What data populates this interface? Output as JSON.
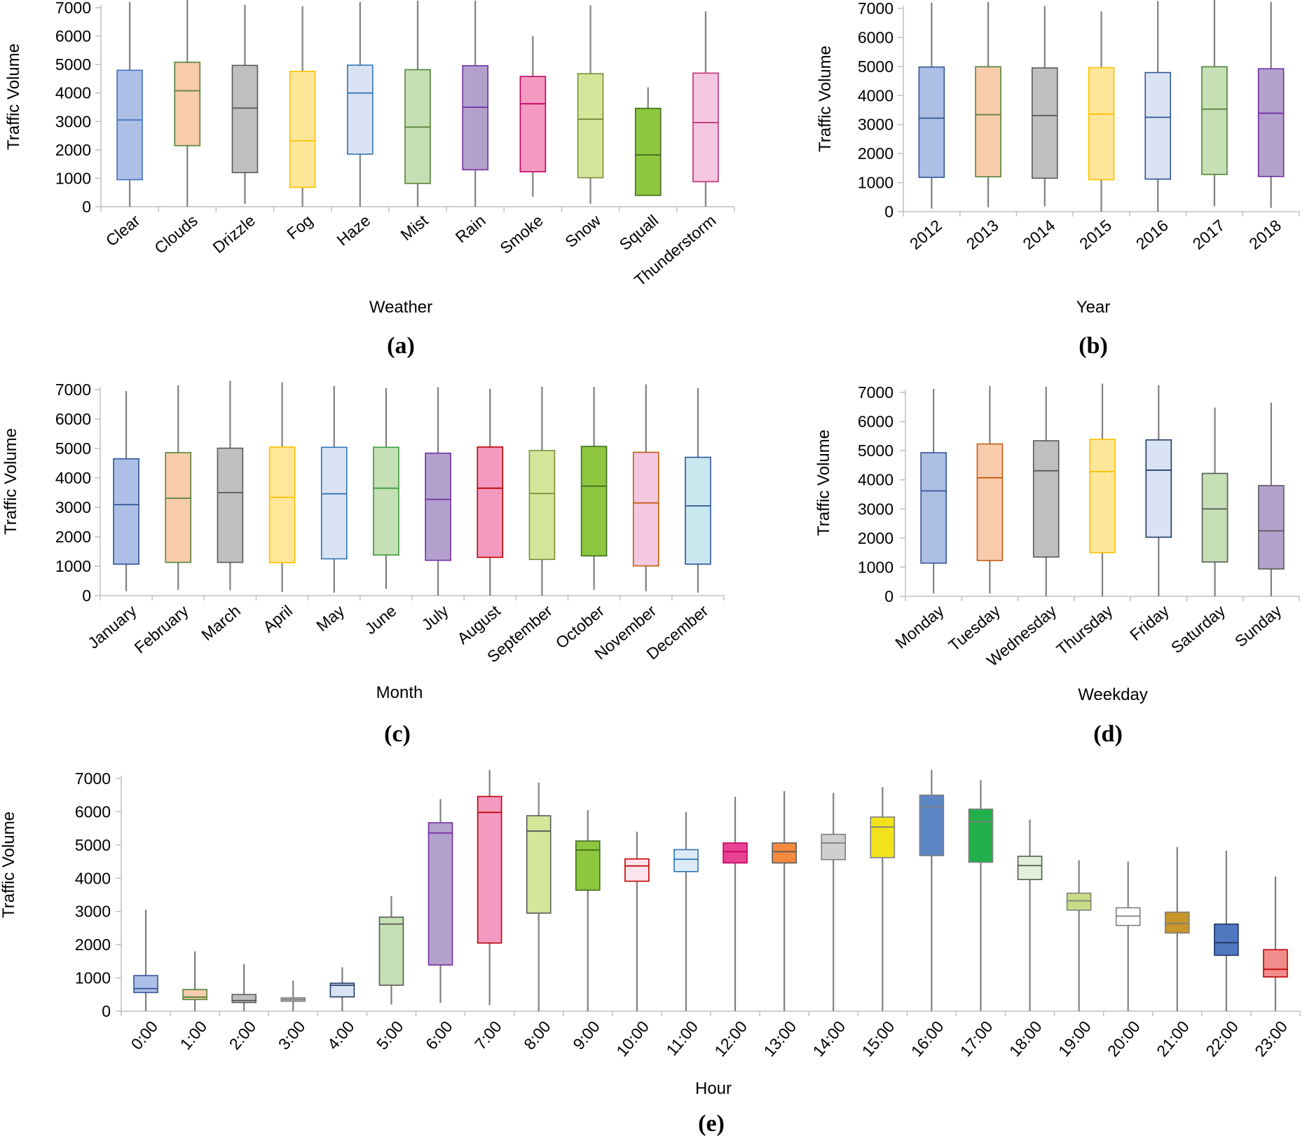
{
  "figure": {
    "colors": [
      "#4472c4",
      "#ed7d31",
      "#808080",
      "#ffc000",
      "#5b9bd5",
      "#70ad47",
      "#7030a0",
      "#e6007e",
      "#92d050",
      "#2c7a1a",
      "#e8a0c8",
      "#4bacc6"
    ]
  },
  "chart_data": [
    {
      "type": "box",
      "panel_label": "(a)",
      "xlabel": "Weather",
      "ylabel": "Traffic Volume",
      "ylim": [
        0,
        7000
      ],
      "yticks": [
        "0",
        "1000",
        "2000",
        "3000",
        "4000",
        "5000",
        "6000",
        "7000"
      ],
      "categories": [
        "Clear",
        "Clouds",
        "Drizzle",
        "Fog",
        "Haze",
        "Mist",
        "Rain",
        "Smoke",
        "Snow",
        "Squall",
        "Thunderstorm"
      ],
      "series": [
        {
          "name": "Clear",
          "min": 0,
          "q1": 950,
          "median": 3050,
          "q3": 4800,
          "max": 7200,
          "fill": "#adbfe4",
          "stroke": "#4472c4"
        },
        {
          "name": "Clouds",
          "min": 0,
          "q1": 2150,
          "median": 4080,
          "q3": 5080,
          "max": 7300,
          "fill": "#f8cbad",
          "stroke": "#548235"
        },
        {
          "name": "Drizzle",
          "min": 100,
          "q1": 1200,
          "median": 3470,
          "q3": 4970,
          "max": 7100,
          "fill": "#bfbfbf",
          "stroke": "#595959"
        },
        {
          "name": "Fog",
          "min": 0,
          "q1": 680,
          "median": 2320,
          "q3": 4760,
          "max": 7050,
          "fill": "#ffe699",
          "stroke": "#ffc000"
        },
        {
          "name": "Haze",
          "min": 0,
          "q1": 1850,
          "median": 4000,
          "q3": 4980,
          "max": 7200,
          "fill": "#dae3f3",
          "stroke": "#2e75b6"
        },
        {
          "name": "Mist",
          "min": 0,
          "q1": 820,
          "median": 2800,
          "q3": 4820,
          "max": 7250,
          "fill": "#c5e0b4",
          "stroke": "#548235"
        },
        {
          "name": "Rain",
          "min": 0,
          "q1": 1300,
          "median": 3500,
          "q3": 4960,
          "max": 7250,
          "fill": "#b4a0cd",
          "stroke": "#7030a0"
        },
        {
          "name": "Smoke",
          "min": 350,
          "q1": 1230,
          "median": 3620,
          "q3": 4580,
          "max": 6000,
          "fill": "#f49ac1",
          "stroke": "#c00060"
        },
        {
          "name": "Snow",
          "min": 100,
          "q1": 1020,
          "median": 3080,
          "q3": 4680,
          "max": 7080,
          "fill": "#d5e69b",
          "stroke": "#7a8c3a"
        },
        {
          "name": "Squall",
          "min": 400,
          "q1": 400,
          "median": 1820,
          "q3": 3460,
          "max": 4200,
          "fill": "#8dc63f",
          "stroke": "#3f6d1d"
        },
        {
          "name": "Thunderstorm",
          "min": 0,
          "q1": 880,
          "median": 2960,
          "q3": 4700,
          "max": 6870,
          "fill": "#f4c7e1",
          "stroke": "#c0307a"
        }
      ]
    },
    {
      "type": "box",
      "panel_label": "(b)",
      "xlabel": "Year",
      "ylabel": "Traffic Volume",
      "ylim": [
        0,
        7000
      ],
      "yticks": [
        "0",
        "1000",
        "2000",
        "3000",
        "4000",
        "5000",
        "6000",
        "7000"
      ],
      "categories": [
        "2012",
        "2013",
        "2014",
        "2015",
        "2016",
        "2017",
        "2018"
      ],
      "series": [
        {
          "name": "2012",
          "min": 100,
          "q1": 1180,
          "median": 3220,
          "q3": 4980,
          "max": 7200,
          "fill": "#adbfe4",
          "stroke": "#2f5597"
        },
        {
          "name": "2013",
          "min": 150,
          "q1": 1200,
          "median": 3340,
          "q3": 4990,
          "max": 7220,
          "fill": "#f8cbad",
          "stroke": "#548235"
        },
        {
          "name": "2014",
          "min": 180,
          "q1": 1150,
          "median": 3310,
          "q3": 4950,
          "max": 7080,
          "fill": "#bfbfbf",
          "stroke": "#595959"
        },
        {
          "name": "2015",
          "min": 0,
          "q1": 1100,
          "median": 3360,
          "q3": 4960,
          "max": 6900,
          "fill": "#ffe699",
          "stroke": "#ffc000"
        },
        {
          "name": "2016",
          "min": 0,
          "q1": 1120,
          "median": 3250,
          "q3": 4790,
          "max": 7250,
          "fill": "#dae3f3",
          "stroke": "#2f5597"
        },
        {
          "name": "2017",
          "min": 180,
          "q1": 1280,
          "median": 3530,
          "q3": 4990,
          "max": 7300,
          "fill": "#c5e0b4",
          "stroke": "#548235"
        },
        {
          "name": "2018",
          "min": 130,
          "q1": 1210,
          "median": 3390,
          "q3": 4920,
          "max": 7230,
          "fill": "#b4a0cd",
          "stroke": "#7030a0"
        }
      ]
    },
    {
      "type": "box",
      "panel_label": "(c)",
      "xlabel": "Month",
      "ylabel": "Traffic Volume",
      "ylim": [
        0,
        7000
      ],
      "yticks": [
        "0",
        "1000",
        "2000",
        "3000",
        "4000",
        "5000",
        "6000",
        "7000"
      ],
      "categories": [
        "January",
        "February",
        "March",
        "April",
        "May",
        "June",
        "July",
        "August",
        "September",
        "October",
        "November",
        "December"
      ],
      "series": [
        {
          "name": "January",
          "min": 150,
          "q1": 1070,
          "median": 3090,
          "q3": 4650,
          "max": 6950,
          "fill": "#adbfe4",
          "stroke": "#2f5597"
        },
        {
          "name": "February",
          "min": 200,
          "q1": 1130,
          "median": 3310,
          "q3": 4860,
          "max": 7150,
          "fill": "#f8cbad",
          "stroke": "#548235"
        },
        {
          "name": "March",
          "min": 180,
          "q1": 1130,
          "median": 3500,
          "q3": 5010,
          "max": 7300,
          "fill": "#bfbfbf",
          "stroke": "#595959"
        },
        {
          "name": "April",
          "min": 120,
          "q1": 1120,
          "median": 3340,
          "q3": 5050,
          "max": 7250,
          "fill": "#ffe699",
          "stroke": "#ffc000"
        },
        {
          "name": "May",
          "min": 100,
          "q1": 1250,
          "median": 3460,
          "q3": 5040,
          "max": 7120,
          "fill": "#dae3f3",
          "stroke": "#2e75b6"
        },
        {
          "name": "June",
          "min": 230,
          "q1": 1380,
          "median": 3650,
          "q3": 5040,
          "max": 7050,
          "fill": "#c5e0b4",
          "stroke": "#3c9a3c"
        },
        {
          "name": "July",
          "min": 0,
          "q1": 1200,
          "median": 3270,
          "q3": 4840,
          "max": 7080,
          "fill": "#b4a0cd",
          "stroke": "#7030a0"
        },
        {
          "name": "August",
          "min": 0,
          "q1": 1300,
          "median": 3650,
          "q3": 5050,
          "max": 7030,
          "fill": "#f49ac1",
          "stroke": "#c00000"
        },
        {
          "name": "September",
          "min": 0,
          "q1": 1230,
          "median": 3470,
          "q3": 4930,
          "max": 7100,
          "fill": "#d5e69b",
          "stroke": "#7a8c3a"
        },
        {
          "name": "October",
          "min": 200,
          "q1": 1350,
          "median": 3720,
          "q3": 5070,
          "max": 7090,
          "fill": "#8dc63f",
          "stroke": "#3f6d1d"
        },
        {
          "name": "November",
          "min": 150,
          "q1": 1010,
          "median": 3150,
          "q3": 4870,
          "max": 7180,
          "fill": "#f4c7e1",
          "stroke": "#c55a11"
        },
        {
          "name": "December",
          "min": 100,
          "q1": 1070,
          "median": 3050,
          "q3": 4700,
          "max": 7050,
          "fill": "#c8e8f0",
          "stroke": "#2f5597"
        }
      ]
    },
    {
      "type": "box",
      "panel_label": "(d)",
      "xlabel": "Weekday",
      "ylabel": "Traffic Volume",
      "ylim": [
        0,
        7000
      ],
      "yticks": [
        "0",
        "1000",
        "2000",
        "3000",
        "4000",
        "5000",
        "6000",
        "7000"
      ],
      "categories": [
        "Monday",
        "Tuesday",
        "Wednesday",
        "Thursday",
        "Friday",
        "Saturday",
        "Sunday"
      ],
      "series": [
        {
          "name": "Monday",
          "min": 100,
          "q1": 1140,
          "median": 3620,
          "q3": 4930,
          "max": 7120,
          "fill": "#adbfe4",
          "stroke": "#2f5597"
        },
        {
          "name": "Tuesday",
          "min": 100,
          "q1": 1230,
          "median": 4070,
          "q3": 5230,
          "max": 7220,
          "fill": "#f8cbad",
          "stroke": "#c55a11"
        },
        {
          "name": "Wednesday",
          "min": 0,
          "q1": 1350,
          "median": 4310,
          "q3": 5340,
          "max": 7200,
          "fill": "#bfbfbf",
          "stroke": "#595959"
        },
        {
          "name": "Thursday",
          "min": 0,
          "q1": 1500,
          "median": 4280,
          "q3": 5390,
          "max": 7300,
          "fill": "#ffe699",
          "stroke": "#ffc000"
        },
        {
          "name": "Friday",
          "min": 0,
          "q1": 2030,
          "median": 4330,
          "q3": 5370,
          "max": 7240,
          "fill": "#dae3f3",
          "stroke": "#203864"
        },
        {
          "name": "Saturday",
          "min": 0,
          "q1": 1180,
          "median": 3000,
          "q3": 4220,
          "max": 6480,
          "fill": "#c5e0b4",
          "stroke": "#595959"
        },
        {
          "name": "Sunday",
          "min": 0,
          "q1": 940,
          "median": 2250,
          "q3": 3800,
          "max": 6650,
          "fill": "#b4a0cd",
          "stroke": "#595959"
        }
      ]
    },
    {
      "type": "box",
      "panel_label": "(e)",
      "xlabel": "Hour",
      "ylabel": "Traffic Volume",
      "ylim": [
        0,
        7000
      ],
      "yticks": [
        "0",
        "1000",
        "2000",
        "3000",
        "4000",
        "5000",
        "6000",
        "7000"
      ],
      "categories": [
        "0:00",
        "1:00",
        "2:00",
        "3:00",
        "4:00",
        "5:00",
        "6:00",
        "7:00",
        "8:00",
        "9:00",
        "10:00",
        "11:00",
        "12:00",
        "13:00",
        "14:00",
        "15:00",
        "16:00",
        "17:00",
        "18:00",
        "19:00",
        "20:00",
        "21:00",
        "22:00",
        "23:00"
      ],
      "series": [
        {
          "name": "0:00",
          "min": 0,
          "q1": 560,
          "median": 680,
          "q3": 1070,
          "max": 3050,
          "fill": "#adbfe4",
          "stroke": "#2f5597"
        },
        {
          "name": "1:00",
          "min": 0,
          "q1": 350,
          "median": 420,
          "q3": 650,
          "max": 1800,
          "fill": "#f8cbad",
          "stroke": "#548235"
        },
        {
          "name": "2:00",
          "min": 0,
          "q1": 260,
          "median": 320,
          "q3": 500,
          "max": 1420,
          "fill": "#bfbfbf",
          "stroke": "#595959"
        },
        {
          "name": "3:00",
          "min": 0,
          "q1": 300,
          "median": 350,
          "q3": 400,
          "max": 920,
          "fill": "#bfbfbf",
          "stroke": "#7f7f7f"
        },
        {
          "name": "4:00",
          "min": 0,
          "q1": 430,
          "median": 780,
          "q3": 840,
          "max": 1320,
          "fill": "#dae3f3",
          "stroke": "#203864"
        },
        {
          "name": "5:00",
          "min": 200,
          "q1": 780,
          "median": 2620,
          "q3": 2830,
          "max": 3460,
          "fill": "#c5e0b4",
          "stroke": "#595959"
        },
        {
          "name": "6:00",
          "min": 250,
          "q1": 1390,
          "median": 5360,
          "q3": 5670,
          "max": 6380,
          "fill": "#b4a0cd",
          "stroke": "#7030a0"
        },
        {
          "name": "7:00",
          "min": 180,
          "q1": 2050,
          "median": 5980,
          "q3": 6460,
          "max": 7260,
          "fill": "#f49ac1",
          "stroke": "#c00000"
        },
        {
          "name": "8:00",
          "min": 0,
          "q1": 2950,
          "median": 5420,
          "q3": 5880,
          "max": 6880,
          "fill": "#d5e69b",
          "stroke": "#595959"
        },
        {
          "name": "9:00",
          "min": 0,
          "q1": 3640,
          "median": 4850,
          "q3": 5120,
          "max": 6050,
          "fill": "#8dc63f",
          "stroke": "#3f6d1d"
        },
        {
          "name": "10:00",
          "min": 0,
          "q1": 3910,
          "median": 4370,
          "q3": 4580,
          "max": 5400,
          "fill": "#fde4ec",
          "stroke": "#c00000"
        },
        {
          "name": "11:00",
          "min": 0,
          "q1": 4200,
          "median": 4570,
          "q3": 4860,
          "max": 5990,
          "fill": "#ddebf7",
          "stroke": "#2e75b6"
        },
        {
          "name": "12:00",
          "min": 0,
          "q1": 4460,
          "median": 4800,
          "q3": 5060,
          "max": 6450,
          "fill": "#e84393",
          "stroke": "#c00060"
        },
        {
          "name": "13:00",
          "min": 0,
          "q1": 4460,
          "median": 4800,
          "q3": 5060,
          "max": 6620,
          "fill": "#f58a3c",
          "stroke": "#595959"
        },
        {
          "name": "14:00",
          "min": 0,
          "q1": 4560,
          "median": 5060,
          "q3": 5320,
          "max": 6570,
          "fill": "#cfcfcf",
          "stroke": "#7f7f7f"
        },
        {
          "name": "15:00",
          "min": 0,
          "q1": 4620,
          "median": 5540,
          "q3": 5840,
          "max": 6740,
          "fill": "#f2e21e",
          "stroke": "#7f7f7f"
        },
        {
          "name": "16:00",
          "min": 0,
          "q1": 4680,
          "median": 6160,
          "q3": 6500,
          "max": 7260,
          "fill": "#5b86c5",
          "stroke": "#7f7f7f"
        },
        {
          "name": "17:00",
          "min": 0,
          "q1": 4480,
          "median": 5700,
          "q3": 6080,
          "max": 6950,
          "fill": "#22b04a",
          "stroke": "#7f7f7f"
        },
        {
          "name": "18:00",
          "min": 0,
          "q1": 3960,
          "median": 4380,
          "q3": 4660,
          "max": 5760,
          "fill": "#e2efda",
          "stroke": "#595959"
        },
        {
          "name": "19:00",
          "min": 0,
          "q1": 3040,
          "median": 3320,
          "q3": 3550,
          "max": 4540,
          "fill": "#c9dc87",
          "stroke": "#7f7f7f"
        },
        {
          "name": "20:00",
          "min": 0,
          "q1": 2580,
          "median": 2860,
          "q3": 3110,
          "max": 4500,
          "fill": "#ffffff",
          "stroke": "#7f7f7f"
        },
        {
          "name": "21:00",
          "min": 0,
          "q1": 2350,
          "median": 2640,
          "q3": 2980,
          "max": 4940,
          "fill": "#c8962a",
          "stroke": "#7f7f7f"
        },
        {
          "name": "22:00",
          "min": 0,
          "q1": 1680,
          "median": 2060,
          "q3": 2620,
          "max": 4830,
          "fill": "#4f78c0",
          "stroke": "#203864"
        },
        {
          "name": "23:00",
          "min": 0,
          "q1": 1030,
          "median": 1260,
          "q3": 1850,
          "max": 4050,
          "fill": "#f08c8c",
          "stroke": "#c00000"
        }
      ]
    }
  ]
}
